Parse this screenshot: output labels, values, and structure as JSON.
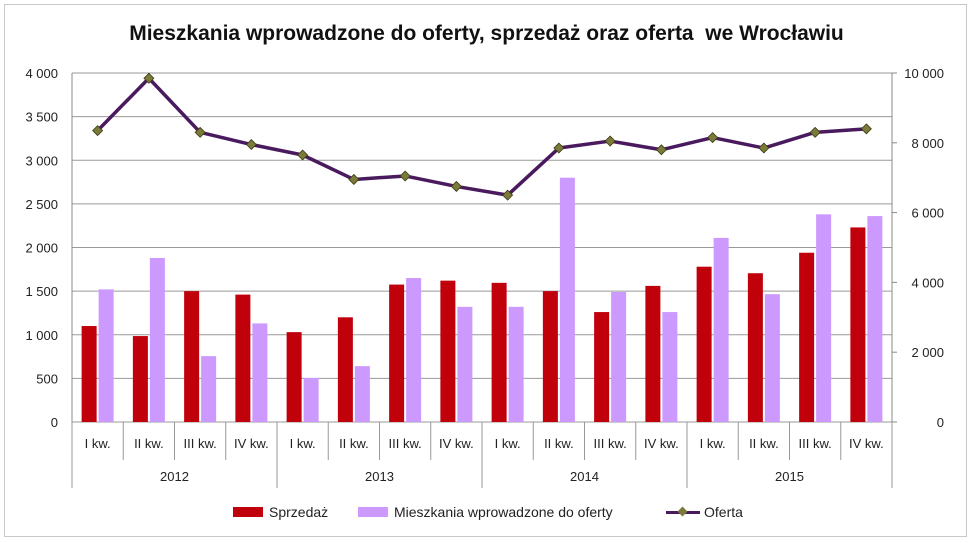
{
  "chart_data": {
    "type": "bar",
    "title": "Mieszkania wprowadzone do oferty, sprzedaż oraz oferta  we Wrocławiu",
    "categories": [
      "I kw.",
      "II kw.",
      "III kw.",
      "IV kw.",
      "I kw.",
      "II kw.",
      "III kw.",
      "IV kw.",
      "I kw.",
      "II kw.",
      "III kw.",
      "IV kw.",
      "I kw.",
      "II kw.",
      "III kw.",
      "IV kw."
    ],
    "groups": [
      "2012",
      "2013",
      "2014",
      "2015"
    ],
    "left_axis": {
      "ylim": [
        0,
        4000
      ],
      "ticks": [
        "0",
        "500",
        "1 000",
        "1 500",
        "2 000",
        "2 500",
        "3 000",
        "3 500",
        "4 000"
      ],
      "tick_values": [
        0,
        500,
        1000,
        1500,
        2000,
        2500,
        3000,
        3500,
        4000
      ]
    },
    "right_axis": {
      "ylim": [
        0,
        10000
      ],
      "ticks": [
        "0",
        "2 000",
        "4 000",
        "6 000",
        "8 000",
        "10 000"
      ],
      "tick_values": [
        0,
        2000,
        4000,
        6000,
        8000,
        10000
      ]
    },
    "series": [
      {
        "name": "Sprzedaż",
        "type": "bar",
        "axis": "left",
        "color": "#c0000b",
        "values": [
          1100,
          985,
          1500,
          1460,
          1030,
          1200,
          1575,
          1620,
          1595,
          1500,
          1260,
          1560,
          1780,
          1705,
          1940,
          2230
        ]
      },
      {
        "name": "Mieszkania wprowadzone do oferty",
        "type": "bar",
        "axis": "left",
        "color": "#cc99ff",
        "values": [
          1520,
          1880,
          755,
          1130,
          505,
          640,
          1650,
          1320,
          1320,
          2800,
          1490,
          1260,
          2110,
          1465,
          2380,
          2360
        ]
      },
      {
        "name": "Oferta",
        "type": "line",
        "axis": "right",
        "color": "#4a1a5e",
        "marker_color": "#7a7a3a",
        "values": [
          8350,
          9850,
          8300,
          7950,
          7650,
          6950,
          7050,
          6750,
          6500,
          7850,
          8050,
          7800,
          8150,
          7850,
          8300,
          8400
        ]
      }
    ],
    "grid": "horizontal",
    "legend_position": "bottom"
  }
}
